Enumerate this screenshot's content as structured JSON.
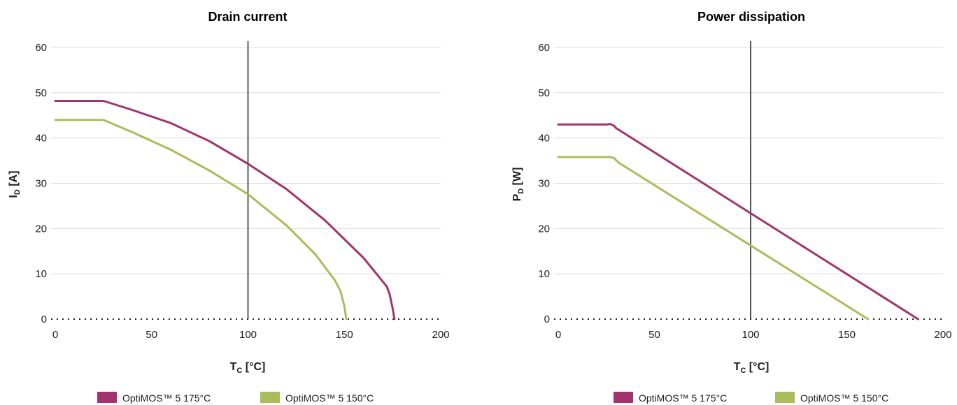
{
  "colors": {
    "series_175": "#a3336f",
    "series_150": "#a9bd5c",
    "grid": "#dcdcdc",
    "marker_line": "#1d1d1b",
    "axis_dots": "#1d1d1b"
  },
  "chart_data": [
    {
      "type": "line",
      "title": "Drain current",
      "xlabel_main": "T",
      "xlabel_sub": "C",
      "xlabel_unit": " [°C]",
      "ylabel_main": "I",
      "ylabel_sub": "D",
      "ylabel_unit": " [A]",
      "xlim": [
        0,
        200
      ],
      "ylim": [
        0,
        60
      ],
      "xticks": [
        0,
        50,
        100,
        150,
        200
      ],
      "yticks": [
        0,
        10,
        20,
        30,
        40,
        50,
        60
      ],
      "grid": true,
      "vertical_marker_x": 100,
      "legend_placement": "bottom",
      "series": [
        {
          "name": "OptiMOS™ 5 175°C",
          "color": "#a3336f",
          "x": [
            0,
            25,
            40,
            60,
            80,
            100,
            120,
            140,
            160,
            172,
            173.5,
            175,
            176
          ],
          "y": [
            48.2,
            48.2,
            46.2,
            43.3,
            39.3,
            34.3,
            28.7,
            21.8,
            13.5,
            7.2,
            5.5,
            2.5,
            0
          ]
        },
        {
          "name": "OptiMOS™ 5 150°C",
          "color": "#a9bd5c",
          "x": [
            0,
            25,
            40,
            60,
            80,
            100,
            120,
            135,
            145,
            148,
            150,
            151
          ],
          "y": [
            44,
            44,
            41.3,
            37.4,
            32.8,
            27.6,
            20.7,
            14.3,
            8.6,
            6.2,
            2.8,
            0
          ]
        }
      ]
    },
    {
      "type": "line",
      "title": "Power dissipation",
      "xlabel_main": "T",
      "xlabel_sub": "C",
      "xlabel_unit": " [°C]",
      "ylabel_main": "P",
      "ylabel_sub": "D",
      "ylabel_unit": " [W]",
      "xlim": [
        0,
        200
      ],
      "ylim": [
        0,
        60
      ],
      "xticks": [
        0,
        50,
        100,
        150,
        200
      ],
      "yticks": [
        0,
        10,
        20,
        30,
        40,
        50,
        60
      ],
      "grid": true,
      "vertical_marker_x": 100,
      "legend_placement": "bottom",
      "series": [
        {
          "name": "OptiMOS™ 5 175°C",
          "color": "#a3336f",
          "x": [
            0,
            25,
            27,
            29,
            30,
            187
          ],
          "y": [
            43,
            43,
            43.1,
            42.7,
            42.2,
            0
          ]
        },
        {
          "name": "OptiMOS™ 5 150°C",
          "color": "#a9bd5c",
          "x": [
            0,
            27,
            29,
            30,
            32,
            161
          ],
          "y": [
            35.8,
            35.8,
            35.6,
            35.1,
            34.4,
            0
          ]
        }
      ]
    }
  ]
}
